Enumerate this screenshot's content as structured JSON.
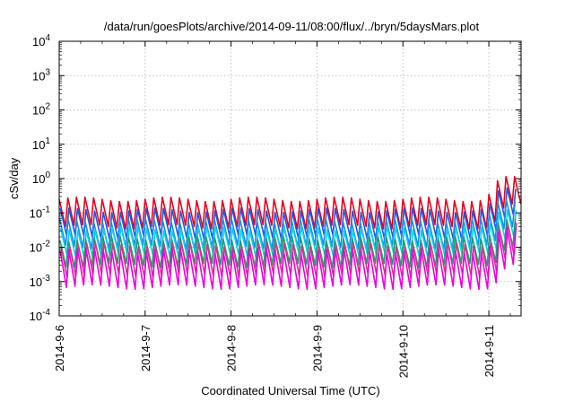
{
  "chart_data": {
    "type": "line",
    "title": "/data/run/goesPlots/archive/2014-09-11/08:00/flux/../bryn/5daysMars.plot",
    "xlabel": "Coordinated Universal Time (UTC)",
    "ylabel": "cSv/day",
    "yscale": "log",
    "ylim": [
      0.0001,
      10000
    ],
    "xlim": [
      "2014-9-6",
      "2014-9-11 09:00"
    ],
    "yticks": [
      {
        "base": "10",
        "exp": "-4"
      },
      {
        "base": "10",
        "exp": "-3"
      },
      {
        "base": "10",
        "exp": "-2"
      },
      {
        "base": "10",
        "exp": "-1"
      },
      {
        "base": "10",
        "exp": "0"
      },
      {
        "base": "10",
        "exp": "1"
      },
      {
        "base": "10",
        "exp": "2"
      },
      {
        "base": "10",
        "exp": "3"
      },
      {
        "base": "10",
        "exp": "4"
      }
    ],
    "xticks": [
      "2014-9-6",
      "2014-9-7",
      "2014-9-8",
      "2014-9-9",
      "2014-9-10",
      "2014-9-11"
    ],
    "grid": true,
    "legend": "none",
    "pattern": {
      "period_hours": 2.4,
      "burst_start_hour": 119.5,
      "burst_factor": 4
    },
    "series": [
      {
        "color": "#e8001c",
        "peak": 0.25,
        "trough": 0.04
      },
      {
        "color": "#2255dd",
        "peak": 0.12,
        "trough": 0.02
      },
      {
        "color": "#1a88ee",
        "peak": 0.06,
        "trough": 0.01
      },
      {
        "color": "#00d4e8",
        "peak": 0.035,
        "trough": 0.006
      },
      {
        "color": "#19a070",
        "peak": 0.018,
        "trough": 0.003
      },
      {
        "color": "#d03a8a",
        "peak": 0.012,
        "trough": 0.0015
      },
      {
        "color": "#ee00dd",
        "peak": 0.008,
        "trough": 0.0007
      }
    ]
  }
}
